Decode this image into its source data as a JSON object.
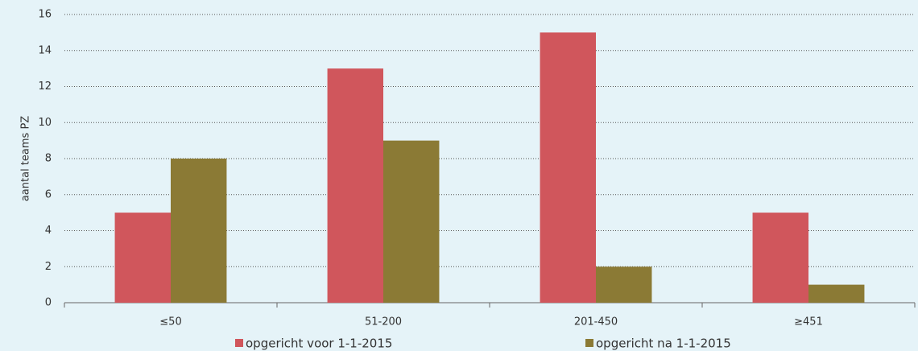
{
  "chart_data": {
    "type": "bar",
    "categories": [
      "≤50",
      "51-200",
      "201-450",
      "≥451"
    ],
    "series": [
      {
        "name": "opgericht voor 1-1-2015",
        "color": "#d0565c",
        "values": [
          5,
          13,
          15,
          5
        ]
      },
      {
        "name": "opgericht na 1-1-2015",
        "color": "#8b7a35",
        "values": [
          8,
          9,
          2,
          1
        ]
      }
    ],
    "y_label": "aantal teams PZ",
    "ylim": [
      0,
      16
    ],
    "yticks": [
      0,
      2,
      4,
      6,
      8,
      10,
      12,
      14,
      16
    ],
    "grid": true,
    "legend": "bottom"
  }
}
